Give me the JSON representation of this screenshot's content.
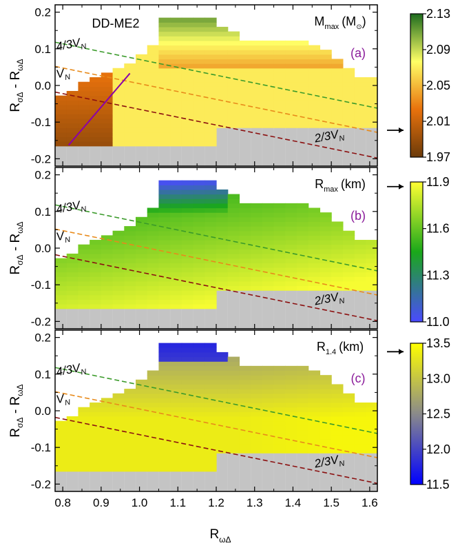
{
  "figure": {
    "model_label": "DD-ME2",
    "xlabel_main": "R",
    "xlabel_sub": "ωΔ",
    "ylabel_main": "R",
    "ylabel_sub1": "σΔ",
    "ylabel_mid": " - R",
    "ylabel_sub2": "ωΔ",
    "xticks": [
      "0.8",
      "0.9",
      "1.0",
      "1.1",
      "1.2",
      "1.3",
      "1.4",
      "1.5",
      "1.6"
    ],
    "yticks": [
      "0.2",
      "0.1",
      "0.0",
      "-0.1",
      "-0.2"
    ],
    "arrow_symbol": "→"
  },
  "chart_data": [
    {
      "type": "heatmap",
      "panel": "(a)",
      "quantity_main": "M",
      "quantity_sub": "max",
      "quantity_unit": "(M",
      "quantity_unit_sub": "⊙",
      "quantity_unit_close": ")",
      "xlim": [
        0.78,
        1.62
      ],
      "ylim": [
        -0.22,
        0.22
      ],
      "colorbar_range": [
        1.97,
        2.13
      ],
      "colorbar_ticks": [
        "2.13",
        "2.09",
        "2.05",
        "2.01",
        "1.97"
      ],
      "colorbar_stops": [
        "#6b3a0a",
        "#e8720c",
        "#ffff66",
        "#1d6b1e"
      ],
      "arrow_value": 2.0,
      "grid": false,
      "lines": [
        {
          "label": "4/3V",
          "label_sub": "N",
          "color": "#3a9a2a",
          "x": [
            0.78,
            1.62
          ],
          "y": [
            0.118,
            -0.062
          ]
        },
        {
          "label": "V",
          "label_sub": "N",
          "color": "#e88a1a",
          "x": [
            0.78,
            1.62
          ],
          "y": [
            0.052,
            -0.128
          ]
        },
        {
          "label": "2/3V",
          "label_sub": "N",
          "color": "#8b1010",
          "x": [
            0.78,
            1.62
          ],
          "y": [
            -0.018,
            -0.198
          ]
        },
        {
          "label": "",
          "label_sub": "",
          "color": "#8a00aa",
          "x": [
            0.815,
            0.975
          ],
          "y": [
            -0.163,
            0.033
          ]
        }
      ]
    },
    {
      "type": "heatmap",
      "panel": "(b)",
      "quantity_main": "R",
      "quantity_sub": "max",
      "quantity_unit": "(km)",
      "quantity_unit_sub": "",
      "quantity_unit_close": "",
      "xlim": [
        0.78,
        1.62
      ],
      "ylim": [
        -0.22,
        0.22
      ],
      "colorbar_range": [
        11.0,
        11.9
      ],
      "colorbar_ticks": [
        "11.9",
        "11.6",
        "11.3",
        "11.0"
      ],
      "colorbar_stops": [
        "#4a4aff",
        "#1aa81a",
        "#ffff33"
      ],
      "arrow_value": 11.87,
      "grid": false,
      "lines": [
        {
          "label": "4/3V",
          "label_sub": "N",
          "color": "#3a9a2a",
          "x": [
            0.78,
            1.62
          ],
          "y": [
            0.118,
            -0.062
          ]
        },
        {
          "label": "V",
          "label_sub": "N",
          "color": "#e88a1a",
          "x": [
            0.78,
            1.62
          ],
          "y": [
            0.052,
            -0.128
          ]
        },
        {
          "label": "2/3V",
          "label_sub": "N",
          "color": "#8b1010",
          "x": [
            0.78,
            1.62
          ],
          "y": [
            -0.018,
            -0.198
          ]
        }
      ]
    },
    {
      "type": "heatmap",
      "panel": "(c)",
      "quantity_main": "R",
      "quantity_sub": "1.4",
      "quantity_unit": "(km)",
      "quantity_unit_sub": "",
      "quantity_unit_close": "",
      "xlim": [
        0.78,
        1.62
      ],
      "ylim": [
        -0.22,
        0.22
      ],
      "colorbar_range": [
        11.5,
        13.5
      ],
      "colorbar_ticks": [
        "13.5",
        "13.0",
        "12.5",
        "12.0",
        "11.5"
      ],
      "colorbar_stops": [
        "#0000ff",
        "#8a8a8a",
        "#ffff00"
      ],
      "arrow_value": 13.38,
      "grid": false,
      "lines": [
        {
          "label": "4/3V",
          "label_sub": "N",
          "color": "#3a9a2a",
          "x": [
            0.78,
            1.62
          ],
          "y": [
            0.118,
            -0.062
          ]
        },
        {
          "label": "V",
          "label_sub": "N",
          "color": "#e88a1a",
          "x": [
            0.78,
            1.62
          ],
          "y": [
            0.052,
            -0.128
          ]
        },
        {
          "label": "2/3V",
          "label_sub": "N",
          "color": "#8b1010",
          "x": [
            0.78,
            1.62
          ],
          "y": [
            -0.018,
            -0.198
          ]
        }
      ]
    }
  ]
}
